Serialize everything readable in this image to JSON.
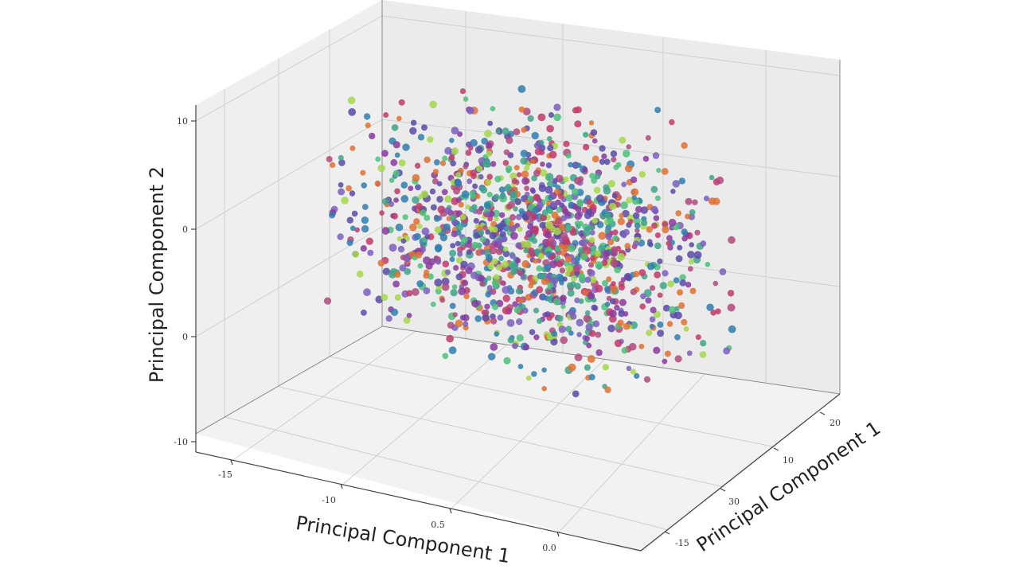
{
  "chart_data": {
    "type": "scatter",
    "projection": "3d",
    "title": "",
    "xlabel": "Principal Component 1",
    "ylabel": "Principal Component 2",
    "depth_label": "Principal Component 1",
    "ticks": {
      "x": [
        "-15",
        "-10",
        "0.5",
        "0.0"
      ],
      "z": [
        "10",
        "0",
        "0",
        "-10"
      ],
      "depth": [
        "-15",
        "30",
        "10",
        "20"
      ]
    },
    "grid": true,
    "pane_color": "#ececec",
    "point_colors": [
      "#5a4aa8",
      "#7a5fc0",
      "#b04a7a",
      "#c23a6a",
      "#3fa38a",
      "#4cc07a",
      "#a6d84a",
      "#2f7fb0",
      "#e07030",
      "#8a3aa0"
    ],
    "point_count_approx": 1400,
    "cloud": {
      "x_range": [
        -12,
        12
      ],
      "y_range": [
        -12,
        12
      ],
      "z_range": [
        -8,
        10
      ],
      "distribution": "approximately Gaussian, centered near origin"
    }
  }
}
